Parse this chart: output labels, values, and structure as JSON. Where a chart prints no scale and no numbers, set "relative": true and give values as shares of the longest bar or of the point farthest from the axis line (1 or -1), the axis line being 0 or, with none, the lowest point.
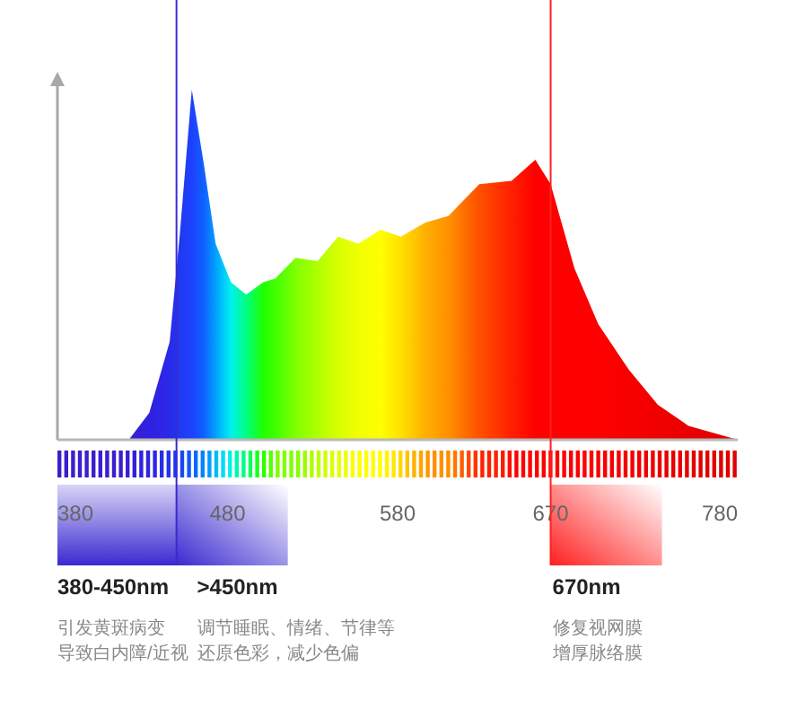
{
  "chart_data": {
    "type": "area",
    "relative": true,
    "xlim": [
      380,
      780
    ],
    "xticks": [
      380,
      480,
      580,
      670,
      780
    ],
    "x": [
      422,
      434,
      446,
      452,
      459,
      466,
      473,
      482,
      491,
      501,
      508,
      520,
      533,
      545,
      557,
      570,
      582,
      596,
      610,
      628,
      647,
      661,
      670,
      684,
      698,
      716,
      733,
      751,
      780
    ],
    "series": [
      {
        "values": [
          0,
          0.077,
          0.28,
          0.59,
          1.0,
          0.79,
          0.56,
          0.45,
          0.415,
          0.45,
          0.46,
          0.52,
          0.51,
          0.58,
          0.56,
          0.6,
          0.58,
          0.62,
          0.64,
          0.73,
          0.74,
          0.8,
          0.73,
          0.49,
          0.33,
          0.2,
          0.1,
          0.04,
          0
        ],
        "colors": [
          "#3a1fd0",
          "#3020e0",
          "#2a2ae8",
          "#1f3af0",
          "#1e40ff",
          "#1060ff",
          "#00a0ff",
          "#00f0f0",
          "#00ff80",
          "#20ff00",
          "#40ff00",
          "#80ff00",
          "#b0ff00",
          "#d8ff00",
          "#f0ff00",
          "#ffff00",
          "#ffe000",
          "#ffb000",
          "#ff9000",
          "#ff5000",
          "#ff2000",
          "#ff0000",
          "#ff0000",
          "#ff0000",
          "#ff0000",
          "#f80000",
          "#f00000",
          "#e80000",
          "#e00000"
        ]
      }
    ],
    "ref_lines": [
      {
        "axis": "x",
        "value": 450,
        "color": "#3a2ad0"
      },
      {
        "axis": "x",
        "value": 670,
        "color": "#ff2020"
      }
    ],
    "annotations": [
      "380-450nm",
      "引发黄斑病变",
      "导致白内障/近视",
      ">450nm",
      "调节睡眠、情绪、节律等",
      "还原色彩，减少色偏",
      "670nm",
      "修复视网膜",
      "增厚脉络膜"
    ]
  }
}
